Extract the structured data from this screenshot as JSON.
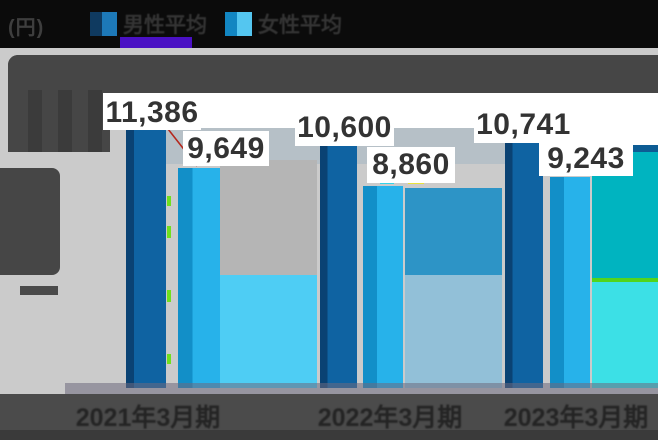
{
  "unit_label": "(円)",
  "legend": {
    "items": [
      {
        "label": "男性平均",
        "selected": true,
        "swatch_colors": [
          "#0f3a60",
          "#1d79b8"
        ],
        "underline_color": "#4a10c4"
      },
      {
        "label": "女性平均",
        "selected": false,
        "swatch_colors": [
          "#1286c2",
          "#54c6f0"
        ]
      }
    ]
  },
  "chart_data": {
    "type": "bar",
    "categories": [
      "2021年3月期",
      "2022年3月期",
      "2023年3月期"
    ],
    "series": [
      {
        "name": "男性平均",
        "color": "#0f63a2",
        "values": [
          11386,
          10600,
          10741
        ]
      },
      {
        "name": "女性平均",
        "color": "#27b2ea",
        "values": [
          9649,
          8860,
          9243
        ]
      }
    ],
    "value_labels": [
      [
        "11,386",
        "9,649"
      ],
      [
        "10,600",
        "8,860"
      ],
      [
        "10,741",
        "9,243"
      ]
    ],
    "ylabel": "(円)",
    "ylim": [
      0,
      13000
    ],
    "grid": false,
    "legend_position": "top"
  },
  "y_axis": {
    "tick_dash": "—"
  },
  "colors": {
    "background": "#cbcbcb",
    "header": "#0b0b0b",
    "dark_band": "#464646",
    "footer": "#4b4b4b",
    "value_text": "#333333",
    "connector_line": "#b5281e",
    "glitch_green": "#6fe01e",
    "slab_gray": "#b5b5b5",
    "slab_sky": "#4ecdf4",
    "slab_blue": "#2d94c6",
    "slab_pale": "#92c0d8",
    "slab_teal": "#00b4c0",
    "slab_turquoise": "#3ce0e6"
  }
}
